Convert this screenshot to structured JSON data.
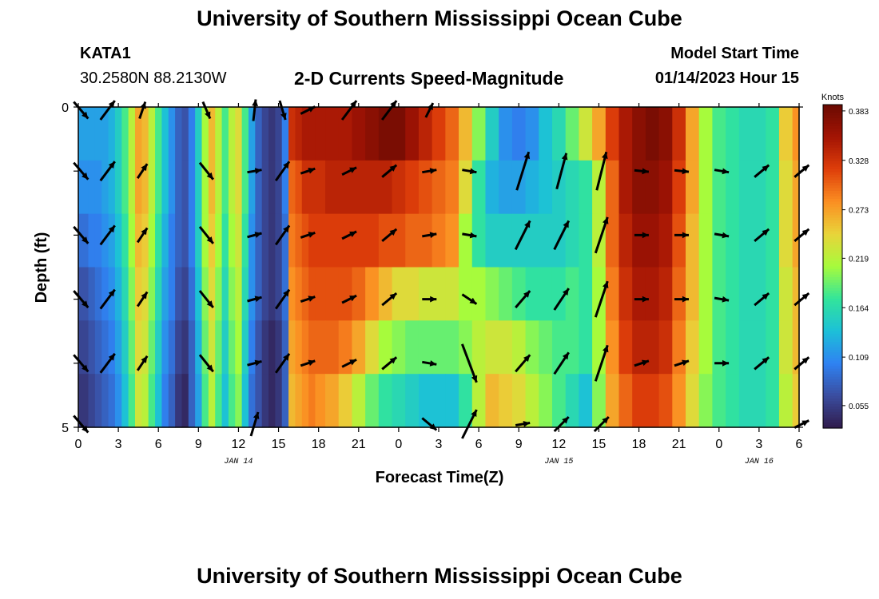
{
  "header": {
    "title": "University of Southern Mississippi Ocean Cube",
    "station": "KATA1",
    "coords": "30.2580N  88.2130W",
    "plot_title": "2-D Currents Speed-Magnitude",
    "model_label": "Model Start Time",
    "model_time": "01/14/2023 Hour 15"
  },
  "footer": {
    "title": "University of Southern Mississippi Ocean Cube"
  },
  "chart_data": {
    "type": "heatmap",
    "title": "2-D Currents Speed-Magnitude",
    "xlabel": "Forecast Time(Z)",
    "ylabel": "Depth (ft)",
    "x_start": "01/14/2023 00Z",
    "x_hours": [
      0,
      54
    ],
    "xticks": [
      "0",
      "3",
      "6",
      "9",
      "12",
      "15",
      "18",
      "21",
      "0",
      "3",
      "6",
      "9",
      "12",
      "15",
      "18",
      "21",
      "0",
      "3",
      "6"
    ],
    "date_labels": [
      {
        "label": "JAN 14",
        "hour": 12
      },
      {
        "label": "JAN 15",
        "hour": 36
      },
      {
        "label": "JAN 16",
        "hour": 51
      }
    ],
    "ylim": [
      0,
      5
    ],
    "yticks": [
      "0",
      "5"
    ],
    "depth_levels_ft": [
      0.5,
      1.5,
      2.5,
      3.5,
      4.5
    ],
    "colorbar": {
      "unit": "Knots",
      "range": [
        0.03,
        0.39
      ],
      "ticks": [
        "0.383",
        "0.328",
        "0.273",
        "0.219",
        "0.164",
        "0.109",
        "0.055"
      ],
      "colors": [
        "#301b4b",
        "#3a4da0",
        "#2f82f2",
        "#1cc0d8",
        "#33e59a",
        "#a7fb3c",
        "#e9d43a",
        "#fb8e22",
        "#de3e0a",
        "#a31404",
        "#6a0a02"
      ]
    },
    "profile_hours": [
      0,
      0.5,
      1,
      1.5,
      2,
      2.5,
      3,
      3.5,
      4,
      4.5,
      5,
      5.5,
      6,
      6.5,
      7,
      7.5,
      8,
      8.5,
      9,
      9.5,
      10,
      10.5,
      11,
      11.5,
      12,
      12.5,
      13,
      13.5,
      14,
      14.5,
      15,
      15.5,
      16,
      16.5,
      17,
      17.5,
      18,
      19,
      20,
      21,
      22,
      23,
      24,
      25,
      26,
      27,
      28,
      29,
      30,
      31,
      32,
      33,
      34,
      35,
      36,
      37,
      38,
      39,
      40,
      41,
      42,
      43,
      44,
      45,
      46,
      47,
      48,
      49,
      50,
      51,
      52,
      53,
      54
    ],
    "speed_knots": [
      [
        0.12,
        0.12,
        0.12,
        0.12,
        0.12,
        0.13,
        0.15,
        0.18,
        0.22,
        0.27,
        0.26,
        0.22,
        0.18,
        0.14,
        0.11,
        0.08,
        0.07,
        0.1,
        0.15,
        0.21,
        0.26,
        0.22,
        0.18,
        0.22,
        0.24,
        0.18,
        0.12,
        0.08,
        0.06,
        0.05,
        0.06,
        0.1,
        0.33,
        0.34,
        0.35,
        0.35,
        0.35,
        0.35,
        0.35,
        0.36,
        0.37,
        0.38,
        0.38,
        0.36,
        0.34,
        0.32,
        0.3,
        0.26,
        0.2,
        0.15,
        0.11,
        0.1,
        0.11,
        0.14,
        0.16,
        0.19,
        0.23,
        0.27,
        0.32,
        0.35,
        0.37,
        0.38,
        0.37,
        0.33,
        0.27,
        0.21,
        0.18,
        0.17,
        0.16,
        0.16,
        0.17,
        0.25,
        0.28
      ],
      [
        0.11,
        0.11,
        0.11,
        0.11,
        0.12,
        0.13,
        0.15,
        0.18,
        0.22,
        0.27,
        0.26,
        0.22,
        0.18,
        0.14,
        0.11,
        0.08,
        0.07,
        0.1,
        0.15,
        0.21,
        0.26,
        0.22,
        0.18,
        0.22,
        0.24,
        0.18,
        0.12,
        0.08,
        0.06,
        0.05,
        0.06,
        0.1,
        0.3,
        0.31,
        0.33,
        0.33,
        0.33,
        0.34,
        0.34,
        0.34,
        0.34,
        0.34,
        0.33,
        0.32,
        0.31,
        0.3,
        0.29,
        0.24,
        0.17,
        0.13,
        0.12,
        0.12,
        0.13,
        0.14,
        0.15,
        0.16,
        0.17,
        0.22,
        0.3,
        0.35,
        0.37,
        0.37,
        0.36,
        0.32,
        0.27,
        0.21,
        0.18,
        0.17,
        0.16,
        0.16,
        0.17,
        0.24,
        0.27
      ],
      [
        0.09,
        0.09,
        0.1,
        0.1,
        0.11,
        0.12,
        0.14,
        0.17,
        0.21,
        0.26,
        0.25,
        0.21,
        0.17,
        0.13,
        0.1,
        0.08,
        0.07,
        0.1,
        0.15,
        0.21,
        0.25,
        0.21,
        0.17,
        0.21,
        0.23,
        0.17,
        0.11,
        0.08,
        0.06,
        0.05,
        0.06,
        0.09,
        0.29,
        0.3,
        0.31,
        0.32,
        0.32,
        0.32,
        0.32,
        0.32,
        0.32,
        0.31,
        0.31,
        0.3,
        0.3,
        0.29,
        0.28,
        0.21,
        0.17,
        0.15,
        0.15,
        0.15,
        0.15,
        0.15,
        0.15,
        0.16,
        0.17,
        0.22,
        0.3,
        0.34,
        0.36,
        0.36,
        0.35,
        0.31,
        0.26,
        0.21,
        0.18,
        0.17,
        0.16,
        0.16,
        0.17,
        0.24,
        0.27
      ],
      [
        0.07,
        0.07,
        0.08,
        0.09,
        0.1,
        0.11,
        0.13,
        0.16,
        0.2,
        0.25,
        0.24,
        0.2,
        0.16,
        0.12,
        0.1,
        0.07,
        0.06,
        0.09,
        0.14,
        0.2,
        0.24,
        0.2,
        0.16,
        0.2,
        0.22,
        0.16,
        0.11,
        0.08,
        0.06,
        0.05,
        0.06,
        0.09,
        0.28,
        0.29,
        0.3,
        0.31,
        0.31,
        0.31,
        0.31,
        0.3,
        0.28,
        0.26,
        0.24,
        0.24,
        0.23,
        0.23,
        0.23,
        0.21,
        0.21,
        0.2,
        0.19,
        0.18,
        0.17,
        0.17,
        0.17,
        0.18,
        0.17,
        0.21,
        0.29,
        0.33,
        0.35,
        0.35,
        0.34,
        0.3,
        0.26,
        0.21,
        0.18,
        0.17,
        0.16,
        0.16,
        0.17,
        0.23,
        0.26
      ],
      [
        0.06,
        0.06,
        0.07,
        0.08,
        0.09,
        0.1,
        0.12,
        0.15,
        0.19,
        0.24,
        0.23,
        0.19,
        0.15,
        0.11,
        0.09,
        0.06,
        0.05,
        0.08,
        0.13,
        0.19,
        0.23,
        0.19,
        0.15,
        0.19,
        0.21,
        0.15,
        0.1,
        0.07,
        0.05,
        0.04,
        0.05,
        0.08,
        0.27,
        0.28,
        0.29,
        0.3,
        0.3,
        0.3,
        0.29,
        0.27,
        0.24,
        0.21,
        0.2,
        0.19,
        0.19,
        0.19,
        0.19,
        0.2,
        0.22,
        0.23,
        0.23,
        0.22,
        0.2,
        0.19,
        0.18,
        0.18,
        0.17,
        0.21,
        0.28,
        0.32,
        0.34,
        0.34,
        0.33,
        0.29,
        0.25,
        0.21,
        0.18,
        0.17,
        0.16,
        0.16,
        0.17,
        0.23,
        0.26
      ],
      [
        0.05,
        0.05,
        0.06,
        0.07,
        0.08,
        0.09,
        0.11,
        0.14,
        0.18,
        0.23,
        0.22,
        0.18,
        0.14,
        0.1,
        0.08,
        0.05,
        0.04,
        0.08,
        0.12,
        0.18,
        0.22,
        0.18,
        0.14,
        0.18,
        0.2,
        0.14,
        0.09,
        0.07,
        0.05,
        0.04,
        0.05,
        0.08,
        0.26,
        0.27,
        0.28,
        0.29,
        0.28,
        0.27,
        0.25,
        0.22,
        0.19,
        0.17,
        0.16,
        0.15,
        0.14,
        0.14,
        0.14,
        0.17,
        0.22,
        0.26,
        0.25,
        0.24,
        0.22,
        0.2,
        0.18,
        0.16,
        0.14,
        0.2,
        0.27,
        0.3,
        0.32,
        0.32,
        0.31,
        0.28,
        0.24,
        0.2,
        0.18,
        0.17,
        0.16,
        0.16,
        0.17,
        0.22,
        0.25
      ]
    ],
    "arrow_hours": [
      0.2,
      2.2,
      4.8,
      9.6,
      13.2,
      15.3,
      17.2,
      20.3,
      23.3,
      26.3,
      29.3,
      33.3,
      36.2,
      39.2,
      42.2,
      45.2,
      48.2,
      51.2,
      54.2
    ],
    "arrow_depths_ft": [
      0.05,
      1.0,
      2.0,
      3.0,
      4.0,
      4.95
    ],
    "arrows": [
      [
        [
          0.3,
          -0.35
        ],
        [
          0.3,
          0.4
        ],
        [
          0.12,
          0.35
        ],
        [
          0.15,
          -0.35
        ],
        [
          0.05,
          0.45
        ],
        [
          0.12,
          -0.4
        ],
        [
          0.3,
          0.15
        ],
        [
          0.3,
          0.4
        ],
        [
          0.3,
          0.4
        ],
        [
          0.15,
          0.3
        ],
        [
          0.0,
          0.0
        ],
        [
          0.0,
          0.0
        ],
        [
          0.0,
          0.0
        ],
        [
          0.0,
          0.0
        ],
        [
          0.0,
          0.0
        ],
        [
          0.0,
          0.0
        ],
        [
          0.0,
          0.0
        ],
        [
          0.0,
          0.0
        ],
        [
          0.0,
          0.0
        ]
      ],
      [
        [
          0.3,
          -0.35
        ],
        [
          0.3,
          0.4
        ],
        [
          0.2,
          0.3
        ],
        [
          0.28,
          -0.35
        ],
        [
          0.3,
          0.05
        ],
        [
          0.28,
          0.4
        ],
        [
          0.3,
          0.1
        ],
        [
          0.3,
          0.15
        ],
        [
          0.3,
          0.25
        ],
        [
          0.3,
          0.05
        ],
        [
          0.3,
          -0.05
        ],
        [
          0.25,
          0.8
        ],
        [
          0.2,
          0.75
        ],
        [
          0.2,
          0.8
        ],
        [
          0.3,
          -0.03
        ],
        [
          0.3,
          -0.03
        ],
        [
          0.3,
          -0.05
        ],
        [
          0.3,
          0.25
        ],
        [
          0.3,
          0.25
        ]
      ],
      [
        [
          0.3,
          -0.35
        ],
        [
          0.3,
          0.4
        ],
        [
          0.2,
          0.3
        ],
        [
          0.28,
          -0.35
        ],
        [
          0.3,
          0.08
        ],
        [
          0.28,
          0.4
        ],
        [
          0.3,
          0.1
        ],
        [
          0.3,
          0.15
        ],
        [
          0.3,
          0.25
        ],
        [
          0.3,
          0.05
        ],
        [
          0.3,
          -0.05
        ],
        [
          0.3,
          0.6
        ],
        [
          0.3,
          0.6
        ],
        [
          0.25,
          0.75
        ],
        [
          0.3,
          0.0
        ],
        [
          0.3,
          0.0
        ],
        [
          0.3,
          -0.05
        ],
        [
          0.3,
          0.25
        ],
        [
          0.3,
          0.25
        ]
      ],
      [
        [
          0.3,
          -0.35
        ],
        [
          0.3,
          0.4
        ],
        [
          0.2,
          0.3
        ],
        [
          0.28,
          -0.35
        ],
        [
          0.3,
          0.08
        ],
        [
          0.28,
          0.4
        ],
        [
          0.3,
          0.1
        ],
        [
          0.3,
          0.15
        ],
        [
          0.3,
          0.25
        ],
        [
          0.3,
          0.0
        ],
        [
          0.3,
          -0.2
        ],
        [
          0.3,
          0.35
        ],
        [
          0.3,
          0.45
        ],
        [
          0.25,
          0.75
        ],
        [
          0.3,
          0.0
        ],
        [
          0.3,
          0.0
        ],
        [
          0.3,
          -0.05
        ],
        [
          0.3,
          0.25
        ],
        [
          0.3,
          0.25
        ]
      ],
      [
        [
          0.3,
          -0.35
        ],
        [
          0.3,
          0.4
        ],
        [
          0.2,
          0.3
        ],
        [
          0.28,
          -0.35
        ],
        [
          0.3,
          0.08
        ],
        [
          0.28,
          0.4
        ],
        [
          0.3,
          0.1
        ],
        [
          0.3,
          0.15
        ],
        [
          0.3,
          0.25
        ],
        [
          0.3,
          -0.05
        ],
        [
          0.3,
          -0.8
        ],
        [
          0.3,
          0.35
        ],
        [
          0.3,
          0.45
        ],
        [
          0.25,
          0.75
        ],
        [
          0.3,
          0.1
        ],
        [
          0.3,
          0.1
        ],
        [
          0.3,
          0.0
        ],
        [
          0.3,
          0.25
        ],
        [
          0.3,
          0.25
        ]
      ],
      [
        [
          0.3,
          -0.35
        ],
        [
          0.0,
          0.0
        ],
        [
          0.0,
          0.0
        ],
        [
          0.0,
          0.0
        ],
        [
          0.15,
          0.5
        ],
        [
          0.0,
          0.0
        ],
        [
          0.0,
          0.0
        ],
        [
          0.0,
          0.0
        ],
        [
          0.0,
          0.0
        ],
        [
          0.3,
          -0.25
        ],
        [
          0.3,
          0.6
        ],
        [
          0.3,
          0.05
        ],
        [
          0.3,
          0.3
        ],
        [
          0.3,
          0.3
        ],
        [
          0.0,
          0.0
        ],
        [
          0.0,
          0.0
        ],
        [
          0.0,
          0.0
        ],
        [
          0.0,
          0.0
        ],
        [
          0.3,
          0.15
        ]
      ]
    ]
  }
}
